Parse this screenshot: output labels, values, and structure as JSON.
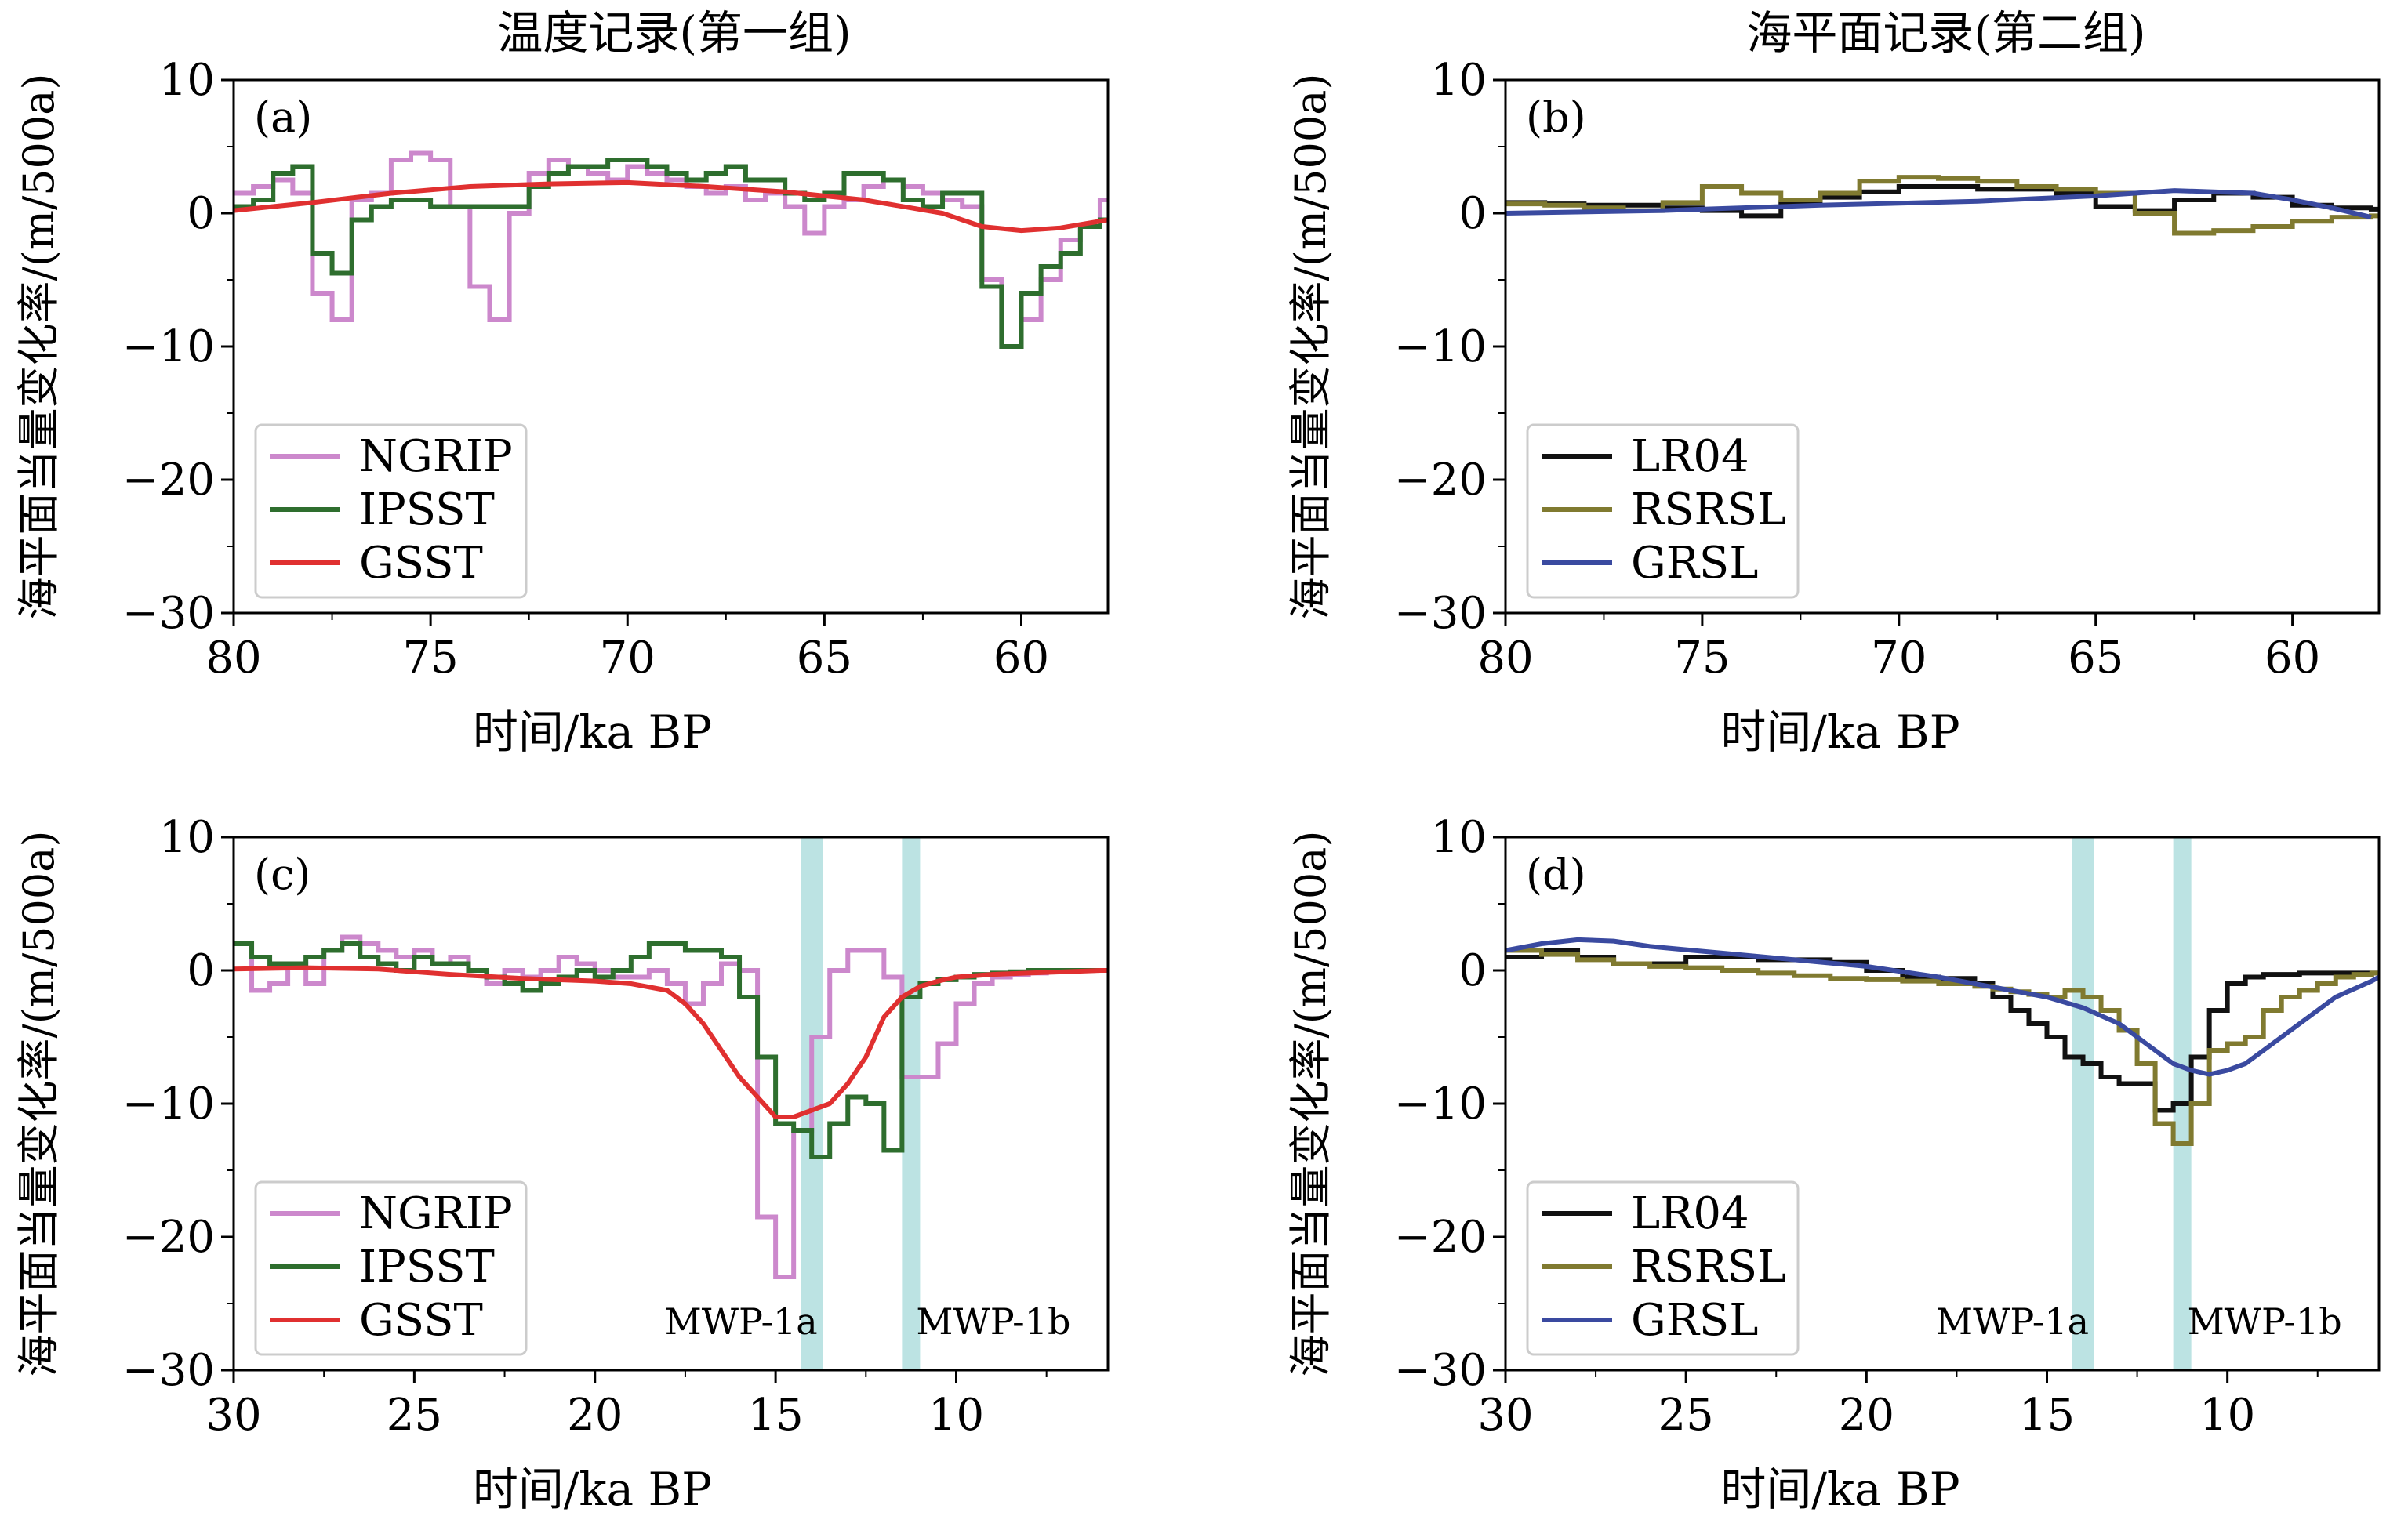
{
  "figure": {
    "col_titles": [
      "温度记录(第一组)",
      "海平面记录(第二组)"
    ]
  },
  "chart_data": [
    {
      "type": "line",
      "panel": "(a)",
      "xlabel": "时间/ka BP",
      "ylabel": "海平面当量变化率/(m/500a)",
      "xlim": [
        80,
        57.8
      ],
      "ylim": [
        -30,
        10
      ],
      "x_reversed": true,
      "xticks": [
        80,
        75,
        70,
        65,
        60
      ],
      "yticks": [
        10,
        0,
        -10,
        -20,
        -30
      ],
      "ytick_labels": [
        "10",
        "0",
        "−10",
        "−20",
        "−30"
      ],
      "legend_position": "lower-left",
      "series": [
        {
          "name": "NGRIP",
          "color": "#cc88cc",
          "step": true,
          "x": [
            80,
            79.5,
            79,
            78.5,
            78,
            77.5,
            77,
            76.5,
            76,
            75.5,
            75,
            74.5,
            74,
            73.5,
            73,
            72.5,
            72,
            71.5,
            71,
            70.5,
            70,
            69.5,
            69,
            68.5,
            68,
            67.5,
            67,
            66.5,
            66,
            65.5,
            65,
            64.5,
            64,
            63.5,
            63,
            62.5,
            62,
            61.5,
            61,
            60.5,
            60,
            59.5,
            59,
            58.5,
            58
          ],
          "y": [
            1.5,
            2,
            2.5,
            1.5,
            -6,
            -8,
            1,
            1.5,
            4,
            4.5,
            4,
            0.5,
            -5.5,
            -8,
            0,
            3,
            4,
            3.5,
            3,
            2.5,
            3.5,
            3,
            2.5,
            2,
            1.5,
            2,
            1,
            1.5,
            0.5,
            -1.5,
            0.5,
            1,
            2,
            2.5,
            2,
            1.5,
            1,
            0.5,
            -5,
            -10,
            -8,
            -5,
            -2,
            -1,
            1
          ]
        },
        {
          "name": "IPSST",
          "color": "#2e6e2e",
          "step": true,
          "x": [
            80,
            79.5,
            79,
            78.5,
            78,
            77.5,
            77,
            76.5,
            76,
            75.5,
            75,
            74.5,
            74,
            73.5,
            73,
            72.5,
            72,
            71.5,
            71,
            70.5,
            70,
            69.5,
            69,
            68.5,
            68,
            67.5,
            67,
            66.5,
            66,
            65.5,
            65,
            64.5,
            64,
            63.5,
            63,
            62.5,
            62,
            61.5,
            61,
            60.5,
            60,
            59.5,
            59,
            58.5,
            58
          ],
          "y": [
            0.5,
            1,
            3,
            3.5,
            -3,
            -4.5,
            -0.5,
            0.5,
            1,
            1,
            0.5,
            0.5,
            0.5,
            0.5,
            0.5,
            2,
            3,
            3.5,
            3.5,
            4,
            4,
            3.5,
            3,
            2.5,
            3,
            3.5,
            2.5,
            2.5,
            1.5,
            1,
            1.5,
            3,
            3,
            2.5,
            1,
            0.5,
            1.5,
            1.5,
            -5.5,
            -10,
            -6,
            -4,
            -3,
            -1,
            -0.5
          ]
        },
        {
          "name": "GSST",
          "color": "#e03030",
          "step": false,
          "x": [
            80,
            78,
            76,
            74,
            72,
            70,
            68,
            66,
            64,
            62,
            61,
            60,
            59,
            57.8
          ],
          "y": [
            0.2,
            0.8,
            1.5,
            2,
            2.2,
            2.3,
            2,
            1.6,
            1,
            0,
            -1,
            -1.3,
            -1.1,
            -0.5
          ]
        }
      ]
    },
    {
      "type": "line",
      "panel": "(b)",
      "xlabel": "时间/ka BP",
      "ylabel": "海平面当量变化率/(m/500a)",
      "xlim": [
        80,
        57.8
      ],
      "ylim": [
        -30,
        10
      ],
      "x_reversed": true,
      "xticks": [
        80,
        75,
        70,
        65,
        60
      ],
      "yticks": [
        10,
        0,
        -10,
        -20,
        -30
      ],
      "ytick_labels": [
        "10",
        "0",
        "−10",
        "−20",
        "−30"
      ],
      "legend_position": "lower-left",
      "series": [
        {
          "name": "LR04",
          "color": "#111111",
          "step": true,
          "x": [
            80,
            79,
            78,
            77,
            76,
            75,
            74,
            73,
            72,
            71,
            70,
            69,
            68,
            67,
            66,
            65,
            64,
            63,
            62,
            61,
            60,
            59,
            58
          ],
          "y": [
            0.8,
            0.7,
            0.6,
            0.6,
            0.4,
            0.2,
            -0.2,
            0.8,
            1.2,
            1.6,
            2,
            2,
            1.8,
            1.8,
            1.5,
            0.5,
            0.2,
            1,
            1.5,
            1.2,
            0.6,
            0.4,
            0.3
          ]
        },
        {
          "name": "RSRSL",
          "color": "#807a30",
          "step": true,
          "x": [
            80,
            79,
            78,
            77,
            76,
            75,
            74,
            73,
            72,
            71,
            70,
            69,
            68,
            67,
            66,
            65,
            64,
            63,
            62,
            61,
            60,
            59,
            58
          ],
          "y": [
            0.7,
            0.6,
            0.4,
            0.2,
            0.8,
            2,
            1.5,
            1,
            1.5,
            2.4,
            2.7,
            2.6,
            2.4,
            2,
            1.8,
            1.5,
            0,
            -1.5,
            -1.3,
            -1,
            -0.6,
            -0.3,
            -0.2
          ]
        },
        {
          "name": "GRSL",
          "color": "#3a4aa0",
          "step": false,
          "x": [
            80,
            76,
            72,
            68,
            65,
            63,
            61,
            60,
            59,
            58
          ],
          "y": [
            0,
            0.2,
            0.6,
            0.9,
            1.3,
            1.7,
            1.5,
            1,
            0.4,
            -0.3
          ]
        }
      ]
    },
    {
      "type": "line",
      "panel": "(c)",
      "xlabel": "时间/ka BP",
      "ylabel": "海平面当量变化率/(m/500a)",
      "xlim": [
        30,
        5.8
      ],
      "ylim": [
        -30,
        10
      ],
      "x_reversed": true,
      "xticks": [
        30,
        25,
        20,
        15,
        10
      ],
      "yticks": [
        10,
        0,
        -10,
        -20,
        -30
      ],
      "ytick_labels": [
        "10",
        "0",
        "−10",
        "−20",
        "−30"
      ],
      "legend_position": "lower-left",
      "bands": [
        {
          "label": "MWP-1a",
          "from": 14.3,
          "to": 13.7
        },
        {
          "label": "MWP-1b",
          "from": 11.5,
          "to": 11.0
        }
      ],
      "series": [
        {
          "name": "NGRIP",
          "color": "#cc88cc",
          "step": true,
          "x": [
            30,
            29.5,
            29,
            28.5,
            28,
            27.5,
            27,
            26.5,
            26,
            25.5,
            25,
            24.5,
            24,
            23.5,
            23,
            22.5,
            22,
            21.5,
            21,
            20.5,
            20,
            19.5,
            19,
            18.5,
            18,
            17.5,
            17,
            16.5,
            16,
            15.5,
            15,
            14.5,
            14,
            13.5,
            13,
            12.5,
            12,
            11.5,
            11,
            10.5,
            10,
            9.5,
            9,
            8.5,
            8,
            7.5,
            7,
            6.5,
            6
          ],
          "y": [
            2,
            -1.5,
            -1,
            0.5,
            -1,
            1.5,
            2.5,
            2,
            1.5,
            1,
            1.5,
            0.5,
            1,
            0,
            -1,
            0,
            -0.5,
            0,
            1,
            0.5,
            0,
            -0.5,
            -0.5,
            0,
            -1,
            -2.5,
            -1,
            0.5,
            0,
            -18.5,
            -23,
            -12,
            -5,
            0,
            1.5,
            1.5,
            -0.5,
            -8,
            -8,
            -5.5,
            -2.5,
            -1,
            -0.5,
            -0.3,
            -0.2,
            -0.1,
            0,
            0,
            0
          ]
        },
        {
          "name": "IPSST",
          "color": "#2e6e2e",
          "step": true,
          "x": [
            30,
            29.5,
            29,
            28.5,
            28,
            27.5,
            27,
            26.5,
            26,
            25.5,
            25,
            24.5,
            24,
            23.5,
            23,
            22.5,
            22,
            21.5,
            21,
            20.5,
            20,
            19.5,
            19,
            18.5,
            18,
            17.5,
            17,
            16.5,
            16,
            15.5,
            15,
            14.5,
            14,
            13.5,
            13,
            12.5,
            12,
            11.5,
            11,
            10.5,
            10,
            9.5,
            9,
            8.5,
            8,
            7.5,
            7,
            6.5,
            6
          ],
          "y": [
            2,
            1,
            0.5,
            0.5,
            1,
            1.5,
            2,
            1,
            0.5,
            0,
            1,
            0.5,
            0.5,
            0,
            -0.5,
            -1,
            -1.5,
            -1,
            -0.5,
            0,
            -0.5,
            0,
            1,
            2,
            2,
            1.5,
            1.5,
            1,
            -2,
            -6.5,
            -11.5,
            -12,
            -14,
            -11.5,
            -9.5,
            -10,
            -13.5,
            -2,
            -1,
            -0.7,
            -0.5,
            -0.3,
            -0.2,
            -0.1,
            0,
            0,
            0,
            0,
            0
          ]
        },
        {
          "name": "GSST",
          "color": "#e03030",
          "step": false,
          "x": [
            30,
            28,
            26,
            24,
            22,
            20,
            19,
            18,
            17.5,
            17,
            16.5,
            16,
            15.5,
            15,
            14.5,
            14,
            13.5,
            13,
            12.5,
            12,
            11.5,
            11,
            10.5,
            10,
            9,
            8,
            7,
            6,
            5.8
          ],
          "y": [
            0.1,
            0.2,
            0.1,
            -0.3,
            -0.6,
            -0.8,
            -1,
            -1.5,
            -2.5,
            -4,
            -6,
            -8,
            -9.5,
            -11,
            -11,
            -10.5,
            -10,
            -8.5,
            -6.5,
            -3.5,
            -2,
            -1.2,
            -0.8,
            -0.5,
            -0.3,
            -0.2,
            -0.1,
            0,
            0
          ]
        }
      ],
      "annotations": [
        "MWP-1a",
        "MWP-1b"
      ]
    },
    {
      "type": "line",
      "panel": "(d)",
      "xlabel": "时间/ka BP",
      "ylabel": "海平面当量变化率/(m/500a)",
      "xlim": [
        30,
        5.8
      ],
      "ylim": [
        -30,
        10
      ],
      "x_reversed": true,
      "xticks": [
        30,
        25,
        20,
        15,
        10
      ],
      "yticks": [
        10,
        0,
        -10,
        -20,
        -30
      ],
      "ytick_labels": [
        "10",
        "0",
        "−10",
        "−20",
        "−30"
      ],
      "legend_position": "lower-left",
      "bands": [
        {
          "label": "MWP-1a",
          "from": 14.3,
          "to": 13.7
        },
        {
          "label": "MWP-1b",
          "from": 11.5,
          "to": 11.0
        }
      ],
      "series": [
        {
          "name": "LR04",
          "color": "#111111",
          "step": true,
          "x": [
            30,
            29,
            28,
            27,
            26,
            25,
            24,
            23,
            22,
            21,
            20,
            19,
            18,
            17,
            16.5,
            16,
            15.5,
            15,
            14.5,
            14,
            13.5,
            13,
            12.5,
            12,
            11.5,
            11,
            10.5,
            10,
            9.5,
            9,
            8,
            7,
            6
          ],
          "y": [
            1,
            1.5,
            1,
            0.5,
            0.5,
            1,
            1,
            0.8,
            0.8,
            0.6,
            0,
            -0.5,
            -0.6,
            -1,
            -2,
            -3,
            -4,
            -5,
            -6.5,
            -7,
            -8,
            -8.5,
            -8.5,
            -10.5,
            -10,
            -6.5,
            -3,
            -1,
            -0.5,
            -0.3,
            -0.2,
            -0.2,
            -0.2
          ]
        },
        {
          "name": "RSRSL",
          "color": "#807a30",
          "step": true,
          "x": [
            30,
            29,
            28,
            27,
            26,
            25,
            24,
            23,
            22,
            21,
            20,
            19,
            18,
            17,
            16.5,
            16,
            15.5,
            15,
            14.5,
            14,
            13.5,
            13,
            12.5,
            12,
            11.5,
            11,
            10.5,
            10,
            9.5,
            9,
            8.5,
            8,
            7.5,
            7,
            6.5,
            6
          ],
          "y": [
            1.5,
            1.2,
            0.8,
            0.5,
            0.3,
            0.2,
            0,
            -0.2,
            -0.4,
            -0.6,
            -0.7,
            -0.8,
            -1,
            -1.2,
            -1.4,
            -1.6,
            -1.8,
            -2,
            -1.5,
            -2,
            -3,
            -4.5,
            -7,
            -11.5,
            -13,
            -10,
            -6,
            -5.5,
            -5,
            -3,
            -2,
            -1.5,
            -1,
            -0.5,
            -0.3,
            -0.2
          ]
        },
        {
          "name": "GRSL",
          "color": "#3a4aa0",
          "step": false,
          "x": [
            30,
            29,
            28,
            27,
            26,
            24,
            22,
            20,
            18,
            16,
            15,
            14,
            13,
            12,
            11.5,
            11,
            10.5,
            10,
            9.5,
            9,
            8,
            7,
            6,
            5.8
          ],
          "y": [
            1.5,
            2,
            2.3,
            2.2,
            1.8,
            1.3,
            0.8,
            0.3,
            -0.5,
            -1.5,
            -2,
            -2.8,
            -4,
            -6,
            -7,
            -7.5,
            -7.8,
            -7.5,
            -7,
            -6,
            -4,
            -2,
            -0.8,
            -0.5
          ]
        }
      ],
      "annotations": [
        "MWP-1a",
        "MWP-1b"
      ]
    }
  ]
}
